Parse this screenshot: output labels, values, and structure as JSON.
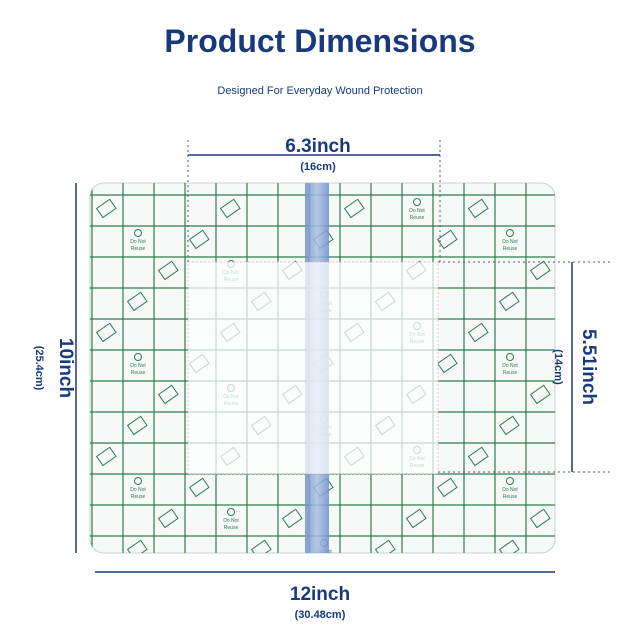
{
  "header": {
    "title": "Product Dimensions",
    "subtitle": "Designed For Everyday Wound Protection"
  },
  "dimensions": {
    "pad_width": {
      "label": "6.3inch",
      "metric": "(16cm)"
    },
    "height": {
      "label": "10inch",
      "metric": "(25.4cm)"
    },
    "pad_height": {
      "label": "5.51inch",
      "metric": "(14cm)"
    },
    "width": {
      "label": "12inch",
      "metric": "(30.48cm)"
    }
  },
  "pattern": {
    "line1": "Do Not",
    "line2": "Reuse"
  }
}
